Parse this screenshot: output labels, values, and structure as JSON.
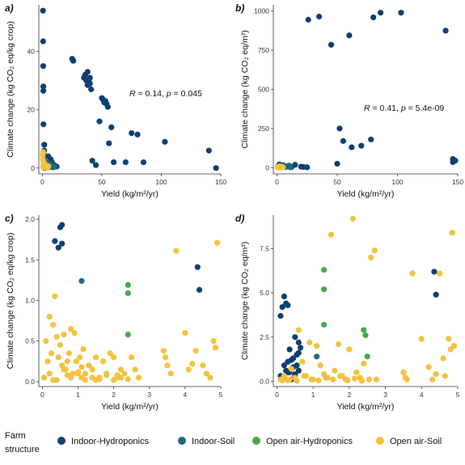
{
  "legend": {
    "title_line1": "Farm",
    "title_line2": "structure",
    "entries": [
      {
        "label": "Indoor-Hydroponics",
        "color": "#0f3f73"
      },
      {
        "label": "Indoor-Soil",
        "color": "#1b6f77"
      },
      {
        "label": "Open air-Hydroponics",
        "color": "#4aa84c"
      },
      {
        "label": "Open air-Soil",
        "color": "#f3c23e"
      }
    ]
  },
  "chart_data": [
    {
      "panel": "a)",
      "type": "scatter",
      "xlabel": "Yield (kg/m²/yr)",
      "ylabel": "Climate change (kg CO₂ eq/kg crop)",
      "xlim": [
        -3,
        150
      ],
      "ylim": [
        -2,
        56
      ],
      "xticks": [
        0,
        50,
        100,
        150
      ],
      "yticks": [
        0,
        20,
        40
      ],
      "annotation": {
        "R": "0.14",
        "p": "0.045"
      },
      "grid": false,
      "series": [
        {
          "name": "Indoor-Hydroponics",
          "color": "#0f3f73",
          "x": [
            0.5,
            0.6,
            0.7,
            0.8,
            0.8,
            0.9,
            1,
            1.1,
            1.2,
            1.3,
            1.5,
            1.6,
            2,
            2.5,
            3,
            5,
            6,
            7,
            8,
            10,
            12,
            25,
            26,
            35,
            36,
            37,
            38,
            38,
            39,
            40,
            40,
            41,
            42,
            45,
            48,
            50,
            51,
            52,
            53,
            54,
            55,
            56,
            58,
            60,
            70,
            75,
            80,
            85,
            103,
            140,
            146
          ],
          "y": [
            54,
            43.5,
            35,
            28,
            26.5,
            15,
            5,
            3,
            2,
            1,
            6,
            8,
            0,
            1.5,
            0.5,
            4,
            2,
            3,
            2,
            1,
            0.5,
            37.5,
            36.8,
            31,
            32,
            30,
            33,
            28.5,
            30,
            31,
            29,
            27,
            2.5,
            1,
            16,
            24,
            23.5,
            22.5,
            23,
            22,
            21,
            8.5,
            14,
            2,
            2,
            12,
            11.5,
            2,
            9,
            6,
            0
          ]
        },
        {
          "name": "Indoor-Soil",
          "color": "#1b6f77",
          "x": [
            3,
            4,
            5,
            6,
            7,
            8,
            9,
            10
          ],
          "y": [
            1,
            2,
            0.5,
            1.5,
            0.3,
            0.8,
            0.2,
            0.4
          ]
        },
        {
          "name": "Open air-Hydroponics",
          "color": "#4aa84c",
          "x": [
            1.2,
            2.4,
            2.5,
            4
          ],
          "y": [
            0.6,
            1.2,
            1.1,
            0.3
          ]
        },
        {
          "name": "Open air-Soil",
          "color": "#f3c23e",
          "x": [
            0.2,
            0.4,
            0.5,
            0.7,
            0.9,
            1,
            1.2,
            1.5,
            2,
            2.5,
            3,
            3.5,
            4,
            4.5,
            5
          ],
          "y": [
            4.5,
            3,
            0.5,
            5.5,
            1,
            0.2,
            2,
            0.8,
            0.5,
            0.3,
            1,
            0.1,
            0.4,
            0.2,
            0.6
          ]
        }
      ]
    },
    {
      "panel": "b)",
      "type": "scatter",
      "xlabel": "Yield (kg/m²/yr)",
      "ylabel": "Climate change (kg CO₂ eq/m²)",
      "xlim": [
        -3,
        150
      ],
      "ylim": [
        -40,
        1040
      ],
      "xticks": [
        0,
        50,
        100,
        150
      ],
      "yticks": [
        0,
        250,
        500,
        750,
        1000
      ],
      "annotation": {
        "R": "0.41",
        "p": "5.4e-09"
      },
      "grid": false,
      "series": [
        {
          "name": "Indoor-Hydroponics",
          "color": "#0f3f73",
          "x": [
            26,
            35,
            45,
            50,
            52,
            55,
            60,
            62,
            70,
            78,
            80,
            86,
            103,
            140,
            146,
            146,
            148,
            1,
            2,
            3,
            5,
            8,
            10,
            12,
            15,
            20,
            22,
            25
          ],
          "y": [
            945,
            965,
            785,
            25,
            250,
            170,
            845,
            130,
            140,
            180,
            960,
            990,
            990,
            875,
            55,
            35,
            45,
            10,
            20,
            5,
            15,
            8,
            12,
            3,
            18,
            6,
            4,
            2
          ]
        },
        {
          "name": "Indoor-Soil",
          "color": "#1b6f77",
          "x": [
            3,
            5,
            7,
            9,
            11
          ],
          "y": [
            5,
            10,
            3,
            8,
            2
          ]
        },
        {
          "name": "Open air-Hydroponics",
          "color": "#4aa84c",
          "x": [
            1.5,
            2.5,
            3,
            4
          ],
          "y": [
            6,
            3,
            8,
            2
          ]
        },
        {
          "name": "Open air-Soil",
          "color": "#f3c23e",
          "x": [
            0.5,
            1,
            1.5,
            2,
            2.5,
            3,
            3.5,
            4,
            4.5,
            5
          ],
          "y": [
            2,
            5,
            1,
            8,
            3,
            0.5,
            6,
            2,
            4,
            1
          ]
        }
      ]
    },
    {
      "panel": "c)",
      "type": "scatter",
      "xlabel": "Yield (kg/m²/yr)",
      "ylabel": "Climate change (kg CO₂ eq/kg crop)",
      "xlim": [
        -0.1,
        5
      ],
      "ylim": [
        -0.06,
        2.05
      ],
      "xticks": [
        0,
        1,
        2,
        3,
        4,
        5
      ],
      "yticks": [
        0.0,
        0.5,
        1.0,
        1.5,
        2.0
      ],
      "grid": false,
      "series": [
        {
          "name": "Indoor-Hydroponics",
          "color": "#0f3f73",
          "x": [
            0.35,
            0.45,
            0.5,
            0.55,
            0.55,
            4.35,
            4.4
          ],
          "y": [
            1.73,
            1.65,
            1.9,
            1.93,
            1.7,
            1.41,
            1.13
          ]
        },
        {
          "name": "Indoor-Soil",
          "color": "#1b6f77",
          "x": [
            1.1
          ],
          "y": [
            1.24
          ]
        },
        {
          "name": "Open air-Hydroponics",
          "color": "#4aa84c",
          "x": [
            2.4,
            2.4,
            2.4
          ],
          "y": [
            1.19,
            1.09,
            0.58
          ]
        },
        {
          "name": "Open air-Soil",
          "color": "#f3c23e",
          "x": [
            0.1,
            0.15,
            0.2,
            0.25,
            0.3,
            0.35,
            0.4,
            0.45,
            0.5,
            0.55,
            0.6,
            0.65,
            0.7,
            0.75,
            0.8,
            0.85,
            0.9,
            0.95,
            1,
            1.05,
            1.1,
            1.15,
            1.2,
            1.3,
            1.4,
            1.5,
            1.6,
            1.7,
            1.8,
            1.9,
            2,
            2.1,
            2.2,
            2.3,
            2.5,
            2.6,
            2.7,
            3.4,
            3.5,
            3.6,
            3.75,
            4,
            4.1,
            4.3,
            4.5,
            4.7,
            4.8,
            4.9,
            0.05,
            0.2,
            0.4,
            0.6,
            0.8,
            1.0,
            1.2,
            1.4,
            1.6,
            1.8,
            2.0,
            2.2,
            2.4,
            3.45,
            4.2,
            4.6,
            4.85,
            0.3,
            0.7,
            1.1,
            1.5,
            2.1
          ],
          "y": [
            0.5,
            0.25,
            0.8,
            0.35,
            0.7,
            1.05,
            0.55,
            0.3,
            0.45,
            0.2,
            0.58,
            0.15,
            0.08,
            0.35,
            0.65,
            0.1,
            0.6,
            0.25,
            0.12,
            0.3,
            0.05,
            0.4,
            0.1,
            0.2,
            0.15,
            0.3,
            0.05,
            0.25,
            0.1,
            0.35,
            0.3,
            0.05,
            0.15,
            0.1,
            0.3,
            0.15,
            0.05,
            0.38,
            0.2,
            0.1,
            1.61,
            0.6,
            0.15,
            0.38,
            0.2,
            0.05,
            0.5,
            1.71,
            0.05,
            0.1,
            0.02,
            0.15,
            0.05,
            0.1,
            0.02,
            0.05,
            0.03,
            0.08,
            0.02,
            0.05,
            0.03,
            0.3,
            0.22,
            0.1,
            0.42,
            0.02,
            0.25,
            0.18,
            0.02,
            0.08
          ]
        }
      ]
    },
    {
      "panel": "d)",
      "type": "scatter",
      "xlabel": "Yield (kg/m²/yr)",
      "ylabel": "Climate change (kg CO₂ eq/m²)",
      "xlim": [
        -0.1,
        5
      ],
      "ylim": [
        -0.3,
        9.4
      ],
      "xticks": [
        0,
        1,
        2,
        3,
        4,
        5
      ],
      "yticks": [
        0.0,
        2.5,
        5.0,
        7.5
      ],
      "grid": false,
      "series": [
        {
          "name": "Indoor-Hydroponics",
          "color": "#0f3f73",
          "x": [
            0.1,
            0.15,
            0.2,
            0.25,
            0.3,
            0.35,
            0.4,
            0.45,
            0.5,
            0.55,
            0.6,
            0.65,
            0.2,
            0.25,
            0.3,
            0.35,
            0.4,
            0.45,
            0.5,
            0.55,
            0.6,
            0.1,
            0.2,
            0.3,
            0.4,
            0.5,
            0.6,
            4.35,
            4.4
          ],
          "y": [
            3.7,
            4.2,
            4.8,
            4.4,
            4.3,
            1.8,
            1.2,
            0.8,
            2.5,
            1.5,
            2.2,
            1.9,
            0.9,
            0.6,
            1.1,
            0.5,
            0.7,
            1.3,
            0.4,
            0.9,
            1.6,
            0.3,
            0.2,
            0.5,
            0.1,
            0.3,
            0.6,
            6.2,
            4.9
          ]
        },
        {
          "name": "Indoor-Soil",
          "color": "#1b6f77",
          "x": [
            1.1
          ],
          "y": [
            1.4
          ]
        },
        {
          "name": "Open air-Hydroponics",
          "color": "#4aa84c",
          "x": [
            1.3,
            1.3,
            1.3,
            2.4,
            2.45,
            2.5
          ],
          "y": [
            6.3,
            5.2,
            3.2,
            2.9,
            2.6,
            1.4
          ]
        },
        {
          "name": "Open air-Soil",
          "color": "#f3c23e",
          "x": [
            0.1,
            0.2,
            0.3,
            0.4,
            0.5,
            0.6,
            0.7,
            0.8,
            0.9,
            1.0,
            1.1,
            1.2,
            1.3,
            1.4,
            1.5,
            1.6,
            1.7,
            1.8,
            1.9,
            2.0,
            2.1,
            2.2,
            2.3,
            2.4,
            2.6,
            2.7,
            2.75,
            3.5,
            3.6,
            3.75,
            4.0,
            4.2,
            4.4,
            4.5,
            4.6,
            4.75,
            4.8,
            4.85,
            0.15,
            0.35,
            0.55,
            0.75,
            0.95,
            1.15,
            1.35,
            1.55,
            1.75,
            1.95,
            2.15,
            2.35,
            2.55,
            3.55,
            4.3,
            4.65,
            4.9
          ],
          "y": [
            0.1,
            0.3,
            0.05,
            0.7,
            0.2,
            2.9,
            1.1,
            0.3,
            2.2,
            0.1,
            2.0,
            0.9,
            0.4,
            0.2,
            8.3,
            0.6,
            2.1,
            0.3,
            0.1,
            1.8,
            9.2,
            0.5,
            0.2,
            1.0,
            7.0,
            7.4,
            0.1,
            0.5,
            0.1,
            6.1,
            2.4,
            0.8,
            0.4,
            6.1,
            1.3,
            2.4,
            1.8,
            8.4,
            0.05,
            0.1,
            0.02,
            0.3,
            0.1,
            0.05,
            0.2,
            0.1,
            0.3,
            0.05,
            0.15,
            0.02,
            0.1,
            0.2,
            0.1,
            0.3,
            2.0
          ]
        }
      ]
    }
  ]
}
